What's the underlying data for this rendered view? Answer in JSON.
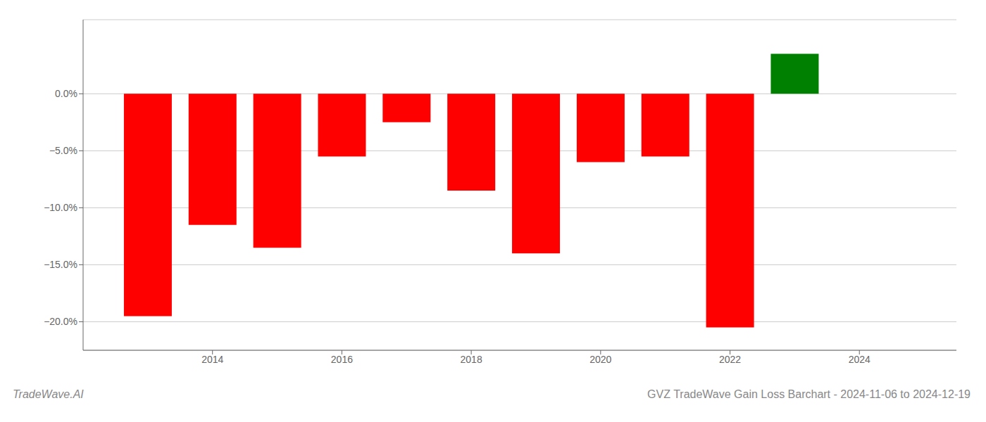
{
  "chart_data": {
    "type": "bar",
    "title": "GVZ TradeWave Gain Loss Barchart - 2024-11-06 to 2024-12-19",
    "annotations": [
      "TradeWave.AI"
    ],
    "x": [
      2013,
      2014,
      2015,
      2016,
      2017,
      2018,
      2019,
      2020,
      2021,
      2022,
      2023
    ],
    "values": [
      -0.195,
      -0.115,
      -0.135,
      -0.055,
      -0.025,
      -0.085,
      -0.14,
      -0.06,
      -0.055,
      -0.205,
      0.035
    ],
    "colors": [
      "#ff0000",
      "#ff0000",
      "#ff0000",
      "#ff0000",
      "#ff0000",
      "#ff0000",
      "#ff0000",
      "#ff0000",
      "#ff0000",
      "#ff0000",
      "#008000"
    ],
    "xlim": [
      2012.0,
      2025.5
    ],
    "xticks": [
      2014,
      2016,
      2018,
      2020,
      2022,
      2024
    ],
    "ylim": [
      -0.225,
      0.065
    ],
    "yticks": [
      {
        "value": 0.0,
        "label": "0.0%"
      },
      {
        "value": -0.05,
        "label": "−5.0%"
      },
      {
        "value": -0.1,
        "label": "−10.0%"
      },
      {
        "value": -0.15,
        "label": "−15.0%"
      },
      {
        "value": -0.2,
        "label": "−20.0%"
      }
    ],
    "grid": true
  }
}
